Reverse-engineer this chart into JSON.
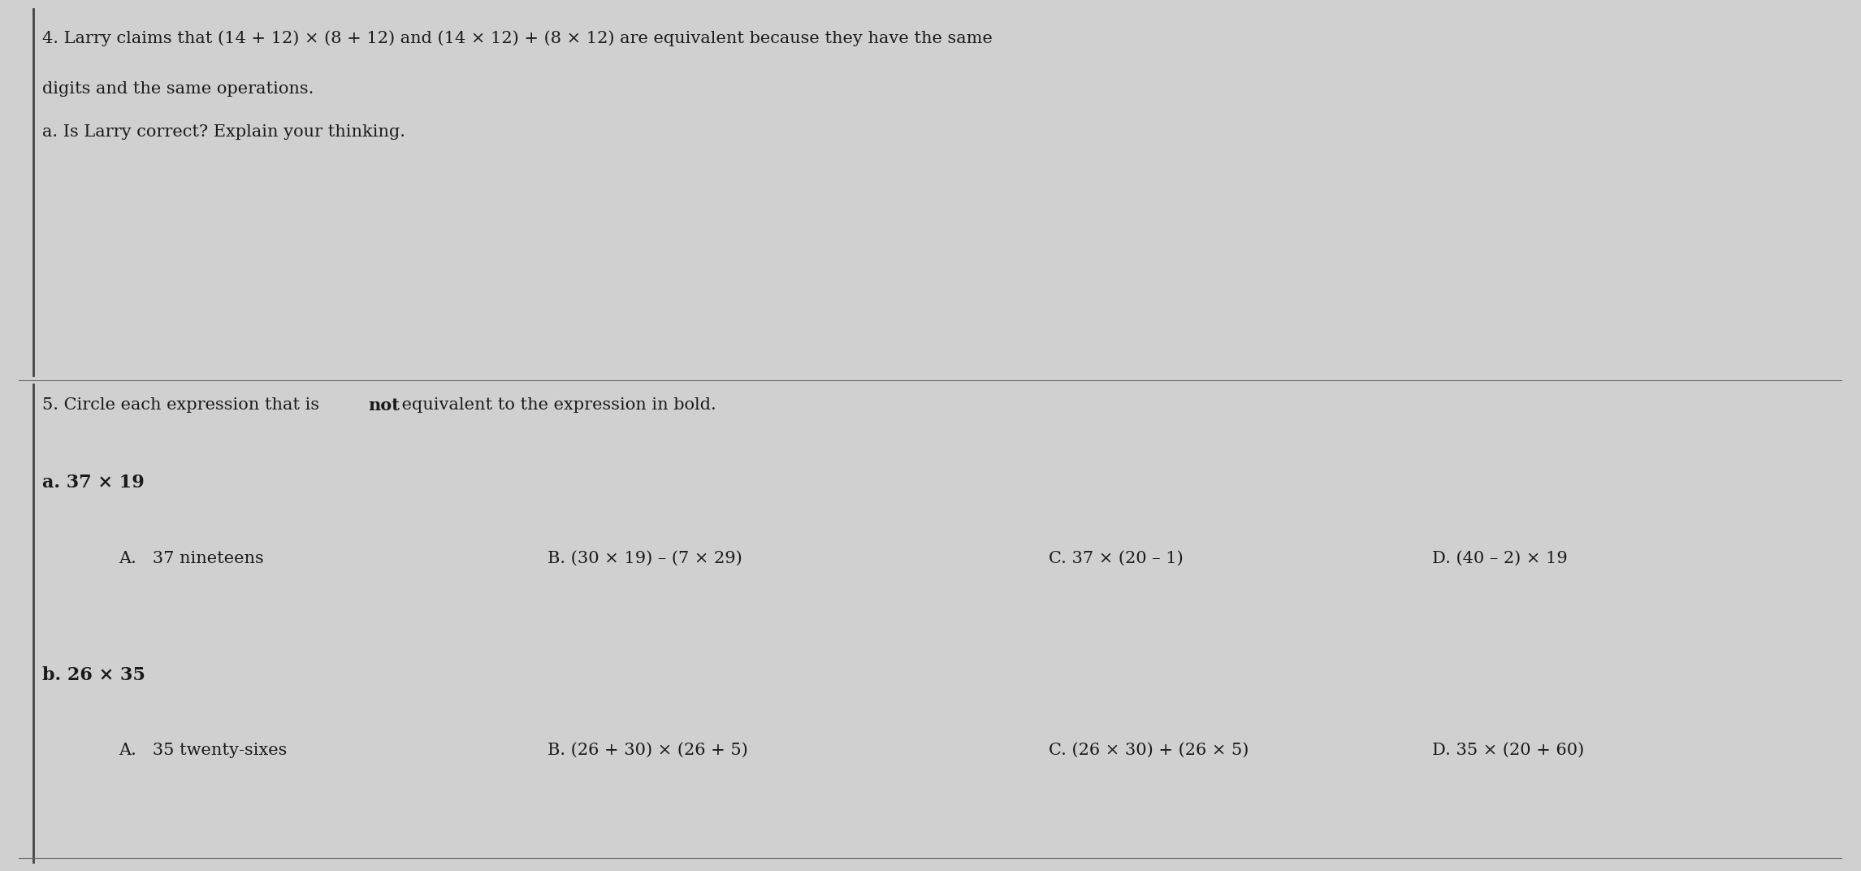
{
  "bg_color": "#d0d0d0",
  "paper_color": "#e0e0e0",
  "text_color": "#1a1a1a",
  "figsize": [
    22.91,
    10.72
  ],
  "dpi": 100,
  "line1": "4. Larry claims that (14 + 12) × (8 + 12) and (14 × 12) + (8 × 12) are equivalent because they have the same",
  "line2": "digits and the same operations.",
  "line3": "a. Is Larry correct? Explain your thinking.",
  "q5_header": "5. Circle each expression that is ",
  "q5_header_not": "not",
  "q5_header_rest": " equivalent to the expression in bold.",
  "qa_label": "a. 37 × 19",
  "qa_A": "A.   37 nineteens",
  "qa_B": "B. (30 × 19) – (7 × 29)",
  "qa_C": "C. 37 × (20 – 1)",
  "qa_D": "D. (40 – 2) × 19",
  "qb_label": "b. 26 × 35",
  "qb_A": "A.   35 twenty-sixes",
  "qb_B": "B. (26 + 30) × (26 + 5)",
  "qb_C": "C. (26 × 30) + (26 × 5)",
  "qb_D": "D. 35 × (20 + 60)",
  "border_color": "#444444",
  "sep_line_color": "#666666"
}
